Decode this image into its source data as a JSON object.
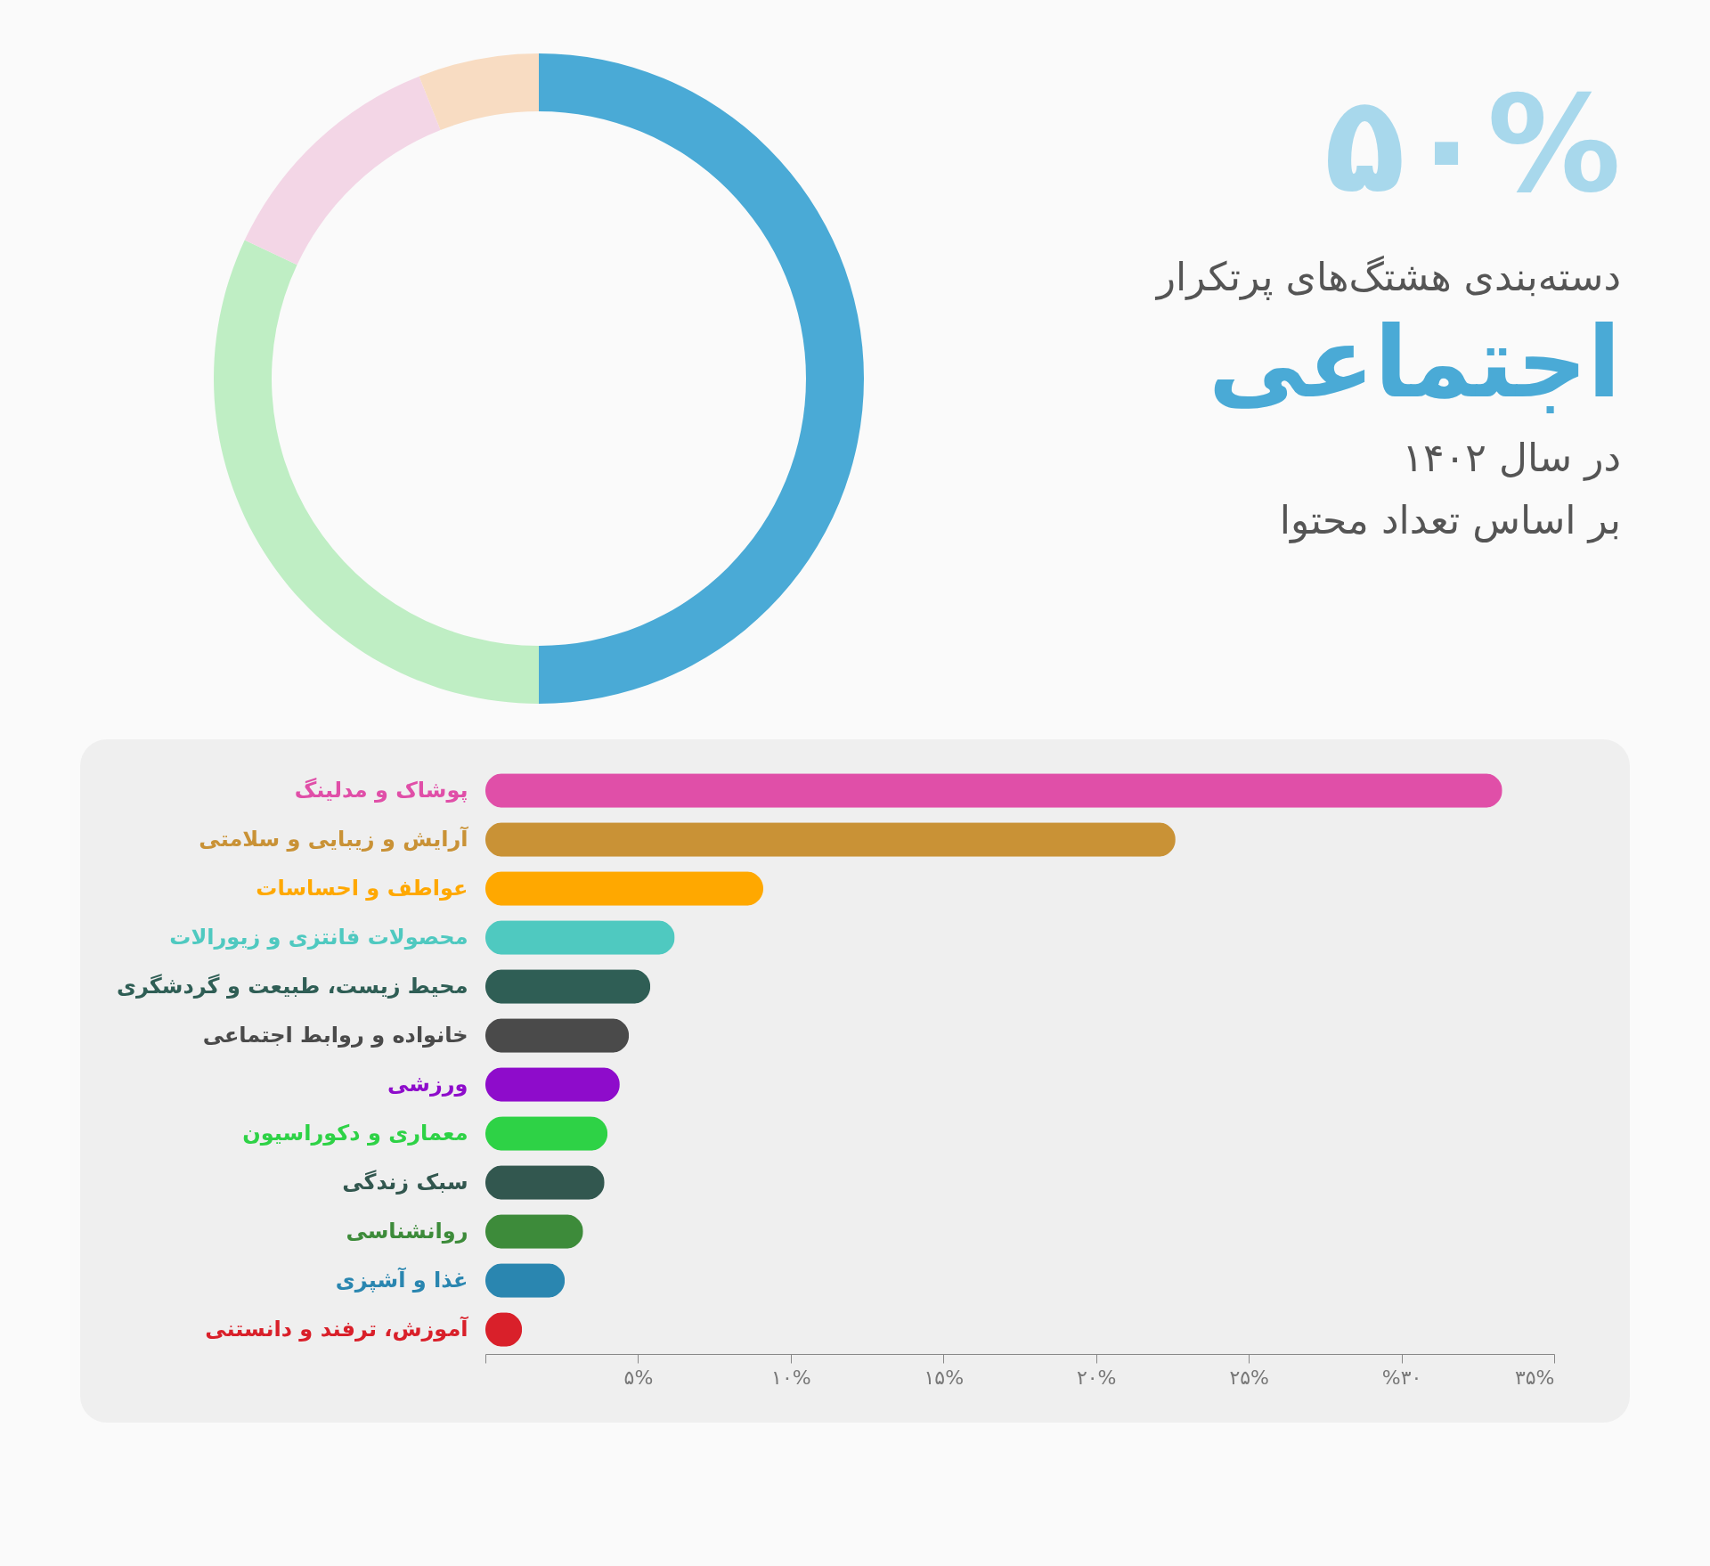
{
  "chart_data": [
    {
      "type": "donut",
      "categories": [
        null,
        null,
        null,
        null
      ],
      "values": [
        50,
        32,
        12,
        6
      ],
      "colors": [
        "#4aaad6",
        "#bfeec4",
        "#f3d6e6",
        "#f8dcc2"
      ],
      "annotations": [
        "۵۰%"
      ]
    },
    {
      "type": "bar",
      "orientation": "horizontal",
      "title": "اجتماعی",
      "subtitle": "دسته‌بندی هشتگ‌های پرتکرار",
      "annotations": [
        "در سال ۱۴۰۲",
        "بر اساس تعداد محتوا"
      ],
      "categories": [
        "پوشاک و مدلینگ",
        "آرایش و زیبایی و سلامتی",
        "عواطف و احساسات",
        "محصولات فانتزی و زیورالات",
        "محیط زیست، طبیعت و گردشگری",
        "خانواده و روابط اجتماعی",
        "ورزشی",
        "معماری و دکوراسیون",
        "سبک زندگی",
        "روانشناسی",
        "غذا و آشپزی",
        "آموزش، ترفند و دانستنی"
      ],
      "values": [
        33.3,
        22.6,
        9.1,
        6.2,
        5.4,
        4.7,
        4.4,
        4.0,
        3.9,
        3.2,
        2.6,
        1.2
      ],
      "colors": [
        "#e04fa8",
        "#c99236",
        "#ffa800",
        "#4fc9c0",
        "#2f5e55",
        "#4a4a4a",
        "#8e0ccb",
        "#2ed246",
        "#32574f",
        "#3d8b3a",
        "#2a86b0",
        "#d9202a"
      ],
      "xlim": [
        0,
        35
      ],
      "xticks": [
        {
          "value": 0,
          "label": null
        },
        {
          "value": 5,
          "label": "۵%"
        },
        {
          "value": 10,
          "label": "۱۰%"
        },
        {
          "value": 15,
          "label": "۱۵%"
        },
        {
          "value": 20,
          "label": "۲۰%"
        },
        {
          "value": 25,
          "label": "۲۵%"
        },
        {
          "value": 30,
          "label": "%۳۰"
        },
        {
          "value": 35,
          "label": "۳۵%"
        }
      ],
      "grid": false,
      "legend": false
    }
  ]
}
